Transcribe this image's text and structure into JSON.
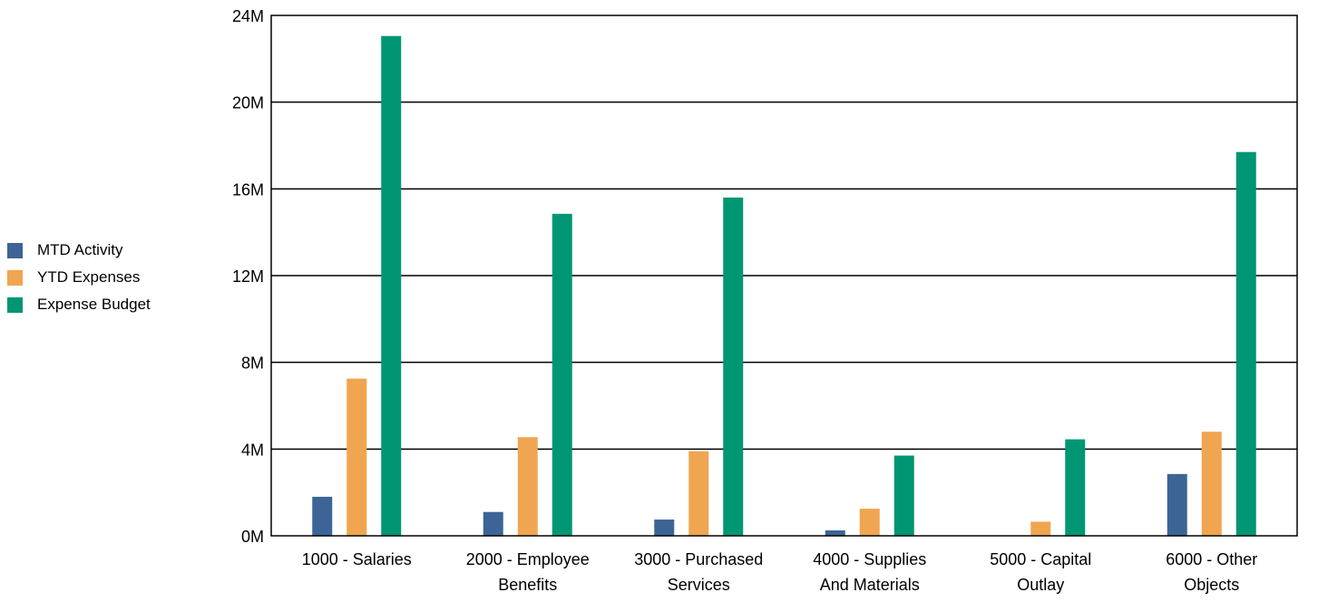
{
  "chart_data": {
    "type": "bar",
    "categories": [
      [
        "1000 - Salaries"
      ],
      [
        "2000 - Employee",
        "Benefits"
      ],
      [
        "3000 - Purchased",
        "Services"
      ],
      [
        "4000 - Supplies",
        "And Materials"
      ],
      [
        "5000 - Capital",
        "Outlay"
      ],
      [
        "6000 - Other",
        "Objects"
      ]
    ],
    "series": [
      {
        "name": "MTD Activity",
        "color": "#3c6496",
        "values": [
          1.8,
          1.1,
          0.75,
          0.25,
          0,
          2.85
        ]
      },
      {
        "name": "YTD Expenses",
        "color": "#f0a550",
        "values": [
          7.25,
          4.55,
          3.9,
          1.25,
          0.65,
          4.8
        ]
      },
      {
        "name": "Expense Budget",
        "color": "#009673",
        "values": [
          23.05,
          14.85,
          15.6,
          3.7,
          4.45,
          17.7
        ]
      }
    ],
    "ylim": [
      0,
      24
    ],
    "yticks": [
      0,
      4,
      8,
      12,
      16,
      20,
      24
    ],
    "ytick_labels": [
      "0M",
      "4M",
      "8M",
      "12M",
      "16M",
      "20M",
      "24M"
    ],
    "grid": true,
    "legend_position": "left"
  }
}
